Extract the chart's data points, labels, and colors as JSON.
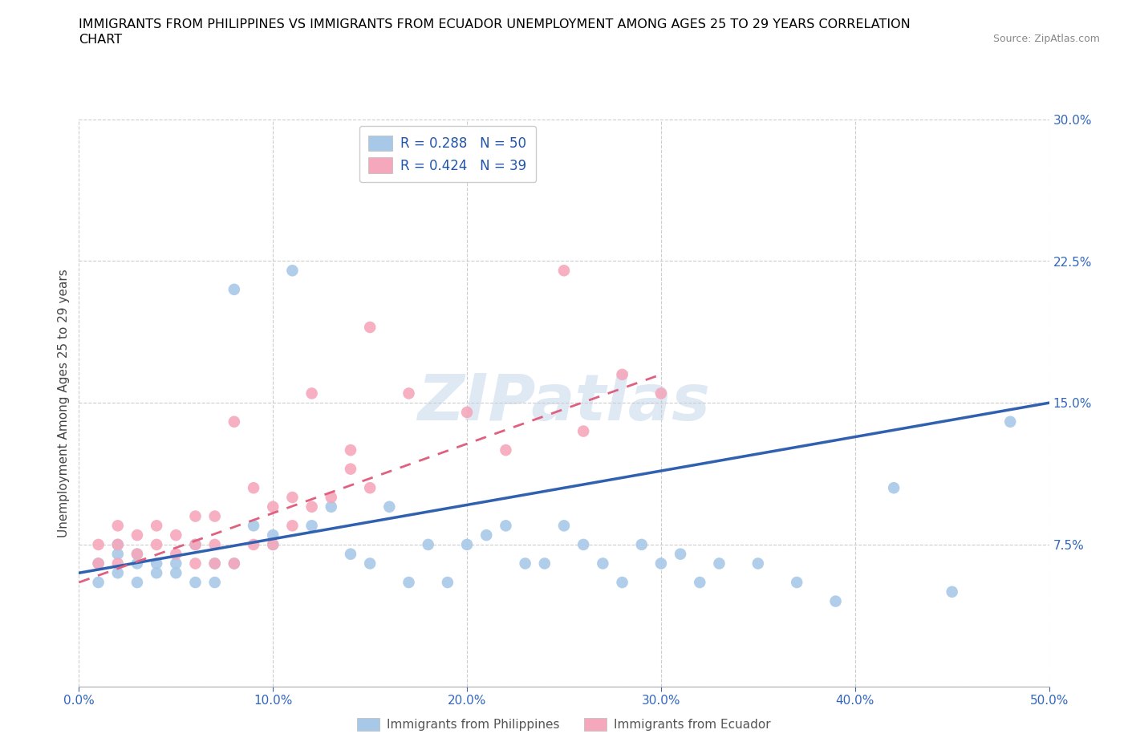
{
  "title_line1": "IMMIGRANTS FROM PHILIPPINES VS IMMIGRANTS FROM ECUADOR UNEMPLOYMENT AMONG AGES 25 TO 29 YEARS CORRELATION",
  "title_line2": "CHART",
  "source": "Source: ZipAtlas.com",
  "ylabel": "Unemployment Among Ages 25 to 29 years",
  "xlim": [
    0.0,
    0.5
  ],
  "ylim": [
    0.0,
    0.3
  ],
  "xticks": [
    0.0,
    0.1,
    0.2,
    0.3,
    0.4,
    0.5
  ],
  "yticks": [
    0.0,
    0.075,
    0.15,
    0.225,
    0.3
  ],
  "yticklabels": [
    "",
    "7.5%",
    "15.0%",
    "22.5%",
    "30.0%"
  ],
  "philippines_R": 0.288,
  "philippines_N": 50,
  "ecuador_R": 0.424,
  "ecuador_N": 39,
  "philippines_color": "#a8c8e8",
  "ecuador_color": "#f5a8bc",
  "philippines_line_color": "#3060b0",
  "ecuador_line_color": "#e06080",
  "watermark": "ZIPatlas",
  "legend_label_philippines": "Immigrants from Philippines",
  "legend_label_ecuador": "Immigrants from Ecuador",
  "philippines_x": [
    0.01,
    0.01,
    0.02,
    0.02,
    0.02,
    0.03,
    0.03,
    0.03,
    0.04,
    0.04,
    0.05,
    0.05,
    0.06,
    0.06,
    0.07,
    0.07,
    0.08,
    0.08,
    0.09,
    0.1,
    0.1,
    0.11,
    0.12,
    0.13,
    0.14,
    0.15,
    0.16,
    0.17,
    0.18,
    0.19,
    0.2,
    0.21,
    0.22,
    0.23,
    0.24,
    0.25,
    0.26,
    0.27,
    0.28,
    0.29,
    0.3,
    0.31,
    0.32,
    0.33,
    0.35,
    0.37,
    0.39,
    0.42,
    0.45,
    0.48
  ],
  "philippines_y": [
    0.065,
    0.055,
    0.07,
    0.06,
    0.075,
    0.065,
    0.055,
    0.07,
    0.06,
    0.065,
    0.06,
    0.065,
    0.055,
    0.075,
    0.065,
    0.055,
    0.065,
    0.21,
    0.085,
    0.075,
    0.08,
    0.22,
    0.085,
    0.095,
    0.07,
    0.065,
    0.095,
    0.055,
    0.075,
    0.055,
    0.075,
    0.08,
    0.085,
    0.065,
    0.065,
    0.085,
    0.075,
    0.065,
    0.055,
    0.075,
    0.065,
    0.07,
    0.055,
    0.065,
    0.065,
    0.055,
    0.045,
    0.105,
    0.05,
    0.14
  ],
  "ecuador_x": [
    0.01,
    0.01,
    0.02,
    0.02,
    0.02,
    0.03,
    0.03,
    0.04,
    0.04,
    0.05,
    0.05,
    0.06,
    0.06,
    0.06,
    0.07,
    0.07,
    0.07,
    0.08,
    0.08,
    0.09,
    0.09,
    0.1,
    0.1,
    0.11,
    0.11,
    0.12,
    0.12,
    0.13,
    0.14,
    0.14,
    0.15,
    0.15,
    0.17,
    0.2,
    0.22,
    0.25,
    0.26,
    0.28,
    0.3
  ],
  "ecuador_y": [
    0.065,
    0.075,
    0.065,
    0.075,
    0.085,
    0.07,
    0.08,
    0.075,
    0.085,
    0.07,
    0.08,
    0.065,
    0.075,
    0.09,
    0.065,
    0.075,
    0.09,
    0.065,
    0.14,
    0.075,
    0.105,
    0.075,
    0.095,
    0.085,
    0.1,
    0.095,
    0.155,
    0.1,
    0.115,
    0.125,
    0.105,
    0.19,
    0.155,
    0.145,
    0.125,
    0.22,
    0.135,
    0.165,
    0.155
  ],
  "philippines_line_x": [
    0.0,
    0.5
  ],
  "philippines_line_y": [
    0.06,
    0.15
  ],
  "ecuador_line_x": [
    0.0,
    0.3
  ],
  "ecuador_line_y": [
    0.055,
    0.165
  ]
}
